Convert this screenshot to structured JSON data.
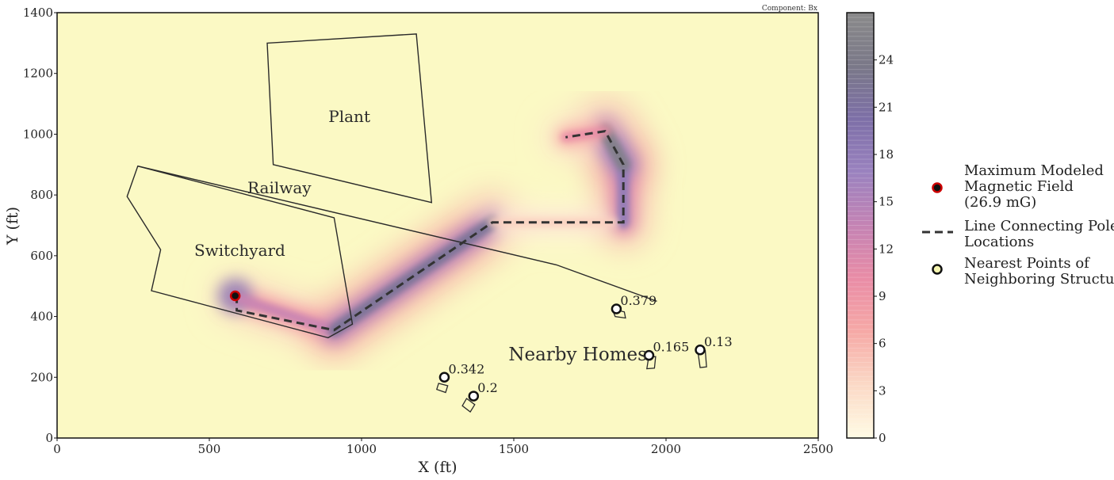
{
  "chart_data": {
    "type": "heatmap",
    "component_label": "Component: Bx",
    "xlabel": "X (ft)",
    "ylabel": "Y (ft)",
    "xlim": [
      0,
      2500
    ],
    "ylim": [
      0,
      1400
    ],
    "x_ticks": [
      0,
      500,
      1000,
      1500,
      2000,
      2500
    ],
    "y_ticks": [
      0,
      200,
      400,
      600,
      800,
      1000,
      1200,
      1400
    ],
    "colorbar": {
      "range": [
        0,
        27
      ],
      "ticks": [
        0,
        3,
        6,
        9,
        12,
        15,
        18,
        21,
        24
      ],
      "colors": [
        "#fffbe4",
        "#fbd9c6",
        "#f6a9a6",
        "#e98ca6",
        "#c483b4",
        "#9a82bf",
        "#7d6fa7",
        "#7a7888",
        "#8a8a8a"
      ]
    },
    "field_segments": [
      {
        "x1": 590,
        "y1": 460,
        "x2": 910,
        "y2": 355,
        "peak": 13
      },
      {
        "x1": 910,
        "y1": 355,
        "x2": 1430,
        "y2": 710,
        "peak": 22
      },
      {
        "x1": 1430,
        "y1": 710,
        "x2": 1860,
        "y2": 710,
        "peak": 4
      },
      {
        "x1": 1860,
        "y1": 710,
        "x2": 1860,
        "y2": 900,
        "peak": 18
      },
      {
        "x1": 1860,
        "y1": 900,
        "x2": 1800,
        "y2": 1010,
        "peak": 25
      },
      {
        "x1": 1800,
        "y1": 1010,
        "x2": 1670,
        "y2": 990,
        "peak": 10
      }
    ],
    "pole_line": [
      [
        590,
        470
      ],
      [
        590,
        420
      ],
      [
        910,
        355
      ],
      [
        1430,
        710
      ],
      [
        1860,
        710
      ],
      [
        1860,
        900
      ],
      [
        1800,
        1010
      ],
      [
        1670,
        990
      ]
    ],
    "structures": {
      "plant": [
        [
          690,
          1300
        ],
        [
          1180,
          1330
        ],
        [
          1230,
          775
        ],
        [
          710,
          900
        ]
      ],
      "switchyard": [
        [
          265,
          895
        ],
        [
          230,
          795
        ],
        [
          340,
          620
        ],
        [
          310,
          485
        ],
        [
          890,
          330
        ],
        [
          970,
          375
        ],
        [
          910,
          725
        ]
      ],
      "railway": [
        [
          265,
          895
        ],
        [
          1640,
          570
        ],
        [
          1970,
          450
        ]
      ]
    },
    "homes": [
      {
        "poly": [
          [
            1253,
            180
          ],
          [
            1283,
            172
          ],
          [
            1276,
            150
          ],
          [
            1247,
            160
          ]
        ]
      },
      {
        "poly": [
          [
            1345,
            130
          ],
          [
            1372,
            110
          ],
          [
            1357,
            86
          ],
          [
            1331,
            106
          ]
        ]
      },
      {
        "poly": [
          [
            1823,
            425
          ],
          [
            1833,
            400
          ],
          [
            1867,
            395
          ],
          [
            1863,
            415
          ]
        ]
      },
      {
        "poly": [
          [
            1943,
            266
          ],
          [
            1966,
            268
          ],
          [
            1962,
            230
          ],
          [
            1937,
            228
          ]
        ]
      },
      {
        "poly": [
          [
            2105,
            282
          ],
          [
            2129,
            288
          ],
          [
            2133,
            234
          ],
          [
            2112,
            232
          ]
        ]
      }
    ],
    "max_point": {
      "x": 585,
      "y": 468
    },
    "neighbor_points": [
      {
        "x": 1272,
        "y": 200,
        "label": "0.342"
      },
      {
        "x": 1368,
        "y": 138,
        "label": "0.2"
      },
      {
        "x": 1837,
        "y": 425,
        "label": "0.379"
      },
      {
        "x": 1944,
        "y": 272,
        "label": "0.165"
      },
      {
        "x": 2112,
        "y": 290,
        "label": "0.13"
      }
    ],
    "region_labels": [
      {
        "text": "Plant",
        "x": 960,
        "y": 1040
      },
      {
        "text": "Railway",
        "x": 730,
        "y": 805
      },
      {
        "text": "Switchyard",
        "x": 600,
        "y": 600
      },
      {
        "text": "Nearby Homes",
        "x": 1710,
        "y": 255
      }
    ],
    "legend": [
      {
        "marker": "max",
        "lines": [
          "Maximum Modeled",
          "Magnetic Field",
          "(26.9 mG)"
        ]
      },
      {
        "marker": "dash",
        "lines": [
          "Line Connecting Pole",
          "Locations"
        ]
      },
      {
        "marker": "neighbor",
        "lines": [
          "Nearest Points of",
          "Neighboring Structures"
        ]
      }
    ],
    "colors": {
      "background": "#fbf9c4",
      "outline": "#2a2a2a",
      "max_marker_fill": "#111111",
      "max_marker_edge": "#cc0000",
      "neighbor_marker_fill": "#f5f5b0",
      "pole_line": "#333333"
    }
  }
}
